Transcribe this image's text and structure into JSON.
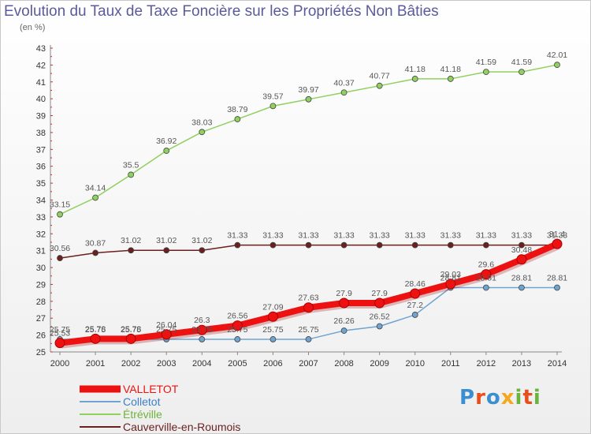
{
  "title": "Evolution du Taux de Taxe Foncière sur les Propriétés Non Bâties",
  "unit_label": "(en %)",
  "logo": {
    "text": "Proxiti",
    "letter_colors": [
      "#3a8fd0",
      "#e84d1c",
      "#3a8fd0",
      "#f3a81e",
      "#6ab43e",
      "#e84d1c",
      "#6ab43e"
    ]
  },
  "chart_data": {
    "type": "line",
    "title": "Evolution du Taux de Taxe Foncière sur les Propriétés Non Bâties",
    "ylabel": "(en %)",
    "xlabel": "",
    "categories": [
      "2000",
      "2001",
      "2002",
      "2003",
      "2004",
      "2005",
      "2006",
      "2007",
      "2008",
      "2009",
      "2010",
      "2011",
      "2012",
      "2013",
      "2014"
    ],
    "ylim": [
      25,
      43
    ],
    "yticks": [
      25,
      26,
      27,
      28,
      29,
      30,
      31,
      32,
      33,
      34,
      35,
      36,
      37,
      38,
      39,
      40,
      41,
      42,
      43
    ],
    "grid": false,
    "legend": "bottom-left",
    "series": [
      {
        "name": "Cauverville-en-Roumois",
        "color": "#6b1f1f",
        "values": [
          30.56,
          30.87,
          31.02,
          31.02,
          31.02,
          31.33,
          31.33,
          31.33,
          31.33,
          31.33,
          31.33,
          31.33,
          31.33,
          31.33,
          31.33
        ],
        "labels": [
          "30.56",
          "30.87",
          "31.02",
          "31.02",
          "31.02",
          "31.33",
          "31.33",
          "31.33",
          "31.33",
          "31.33",
          "31.33",
          "31.33",
          "31.33",
          "31.33",
          "31.33"
        ]
      },
      {
        "name": "Étréville",
        "color": "#90d060",
        "values": [
          33.15,
          34.14,
          35.5,
          36.92,
          38.03,
          38.79,
          39.57,
          39.97,
          40.37,
          40.77,
          41.18,
          41.18,
          41.59,
          41.59,
          42.01
        ],
        "labels": [
          "33.15",
          "34.14",
          "35.5",
          "36.92",
          "38.03",
          "38.79",
          "39.57",
          "39.97",
          "40.37",
          "40.77",
          "41.18",
          "41.18",
          "41.59",
          "41.59",
          "42.01"
        ]
      },
      {
        "name": "Colletot",
        "color": "#6fa3d0",
        "values": [
          25.75,
          25.75,
          25.75,
          25.75,
          25.75,
          25.75,
          25.75,
          25.75,
          26.26,
          26.52,
          27.2,
          28.81,
          28.81,
          28.81,
          28.81
        ],
        "labels": [
          "25.75",
          "25.75",
          "25.75",
          "25.75",
          "25.75",
          "25.75",
          "25.75",
          "25.75",
          "26.26",
          "26.52",
          "27.2",
          "28.81",
          "28.81",
          "28.81",
          "28.81"
        ]
      },
      {
        "name": "VALLETOT",
        "color": "#ee1111",
        "values": [
          25.53,
          25.78,
          25.78,
          26.04,
          26.3,
          26.56,
          27.09,
          27.63,
          27.9,
          27.9,
          28.46,
          29.03,
          29.6,
          30.48,
          31.4
        ],
        "labels": [
          "25.53",
          "25.78",
          "25.78",
          "26.04",
          "26.3",
          "26.56",
          "27.09",
          "27.63",
          "27.9",
          "27.9",
          "28.46",
          "29.03",
          "29.6",
          "30.48",
          "31.4"
        ]
      }
    ]
  },
  "legend_items": [
    {
      "label": "VALLETOT",
      "color": "#ee1111"
    },
    {
      "label": "Colletot",
      "color": "#6fa3d0"
    },
    {
      "label": "Étréville",
      "color": "#90d060"
    },
    {
      "label": "Cauverville-en-Roumois",
      "color": "#6b1f1f"
    }
  ]
}
